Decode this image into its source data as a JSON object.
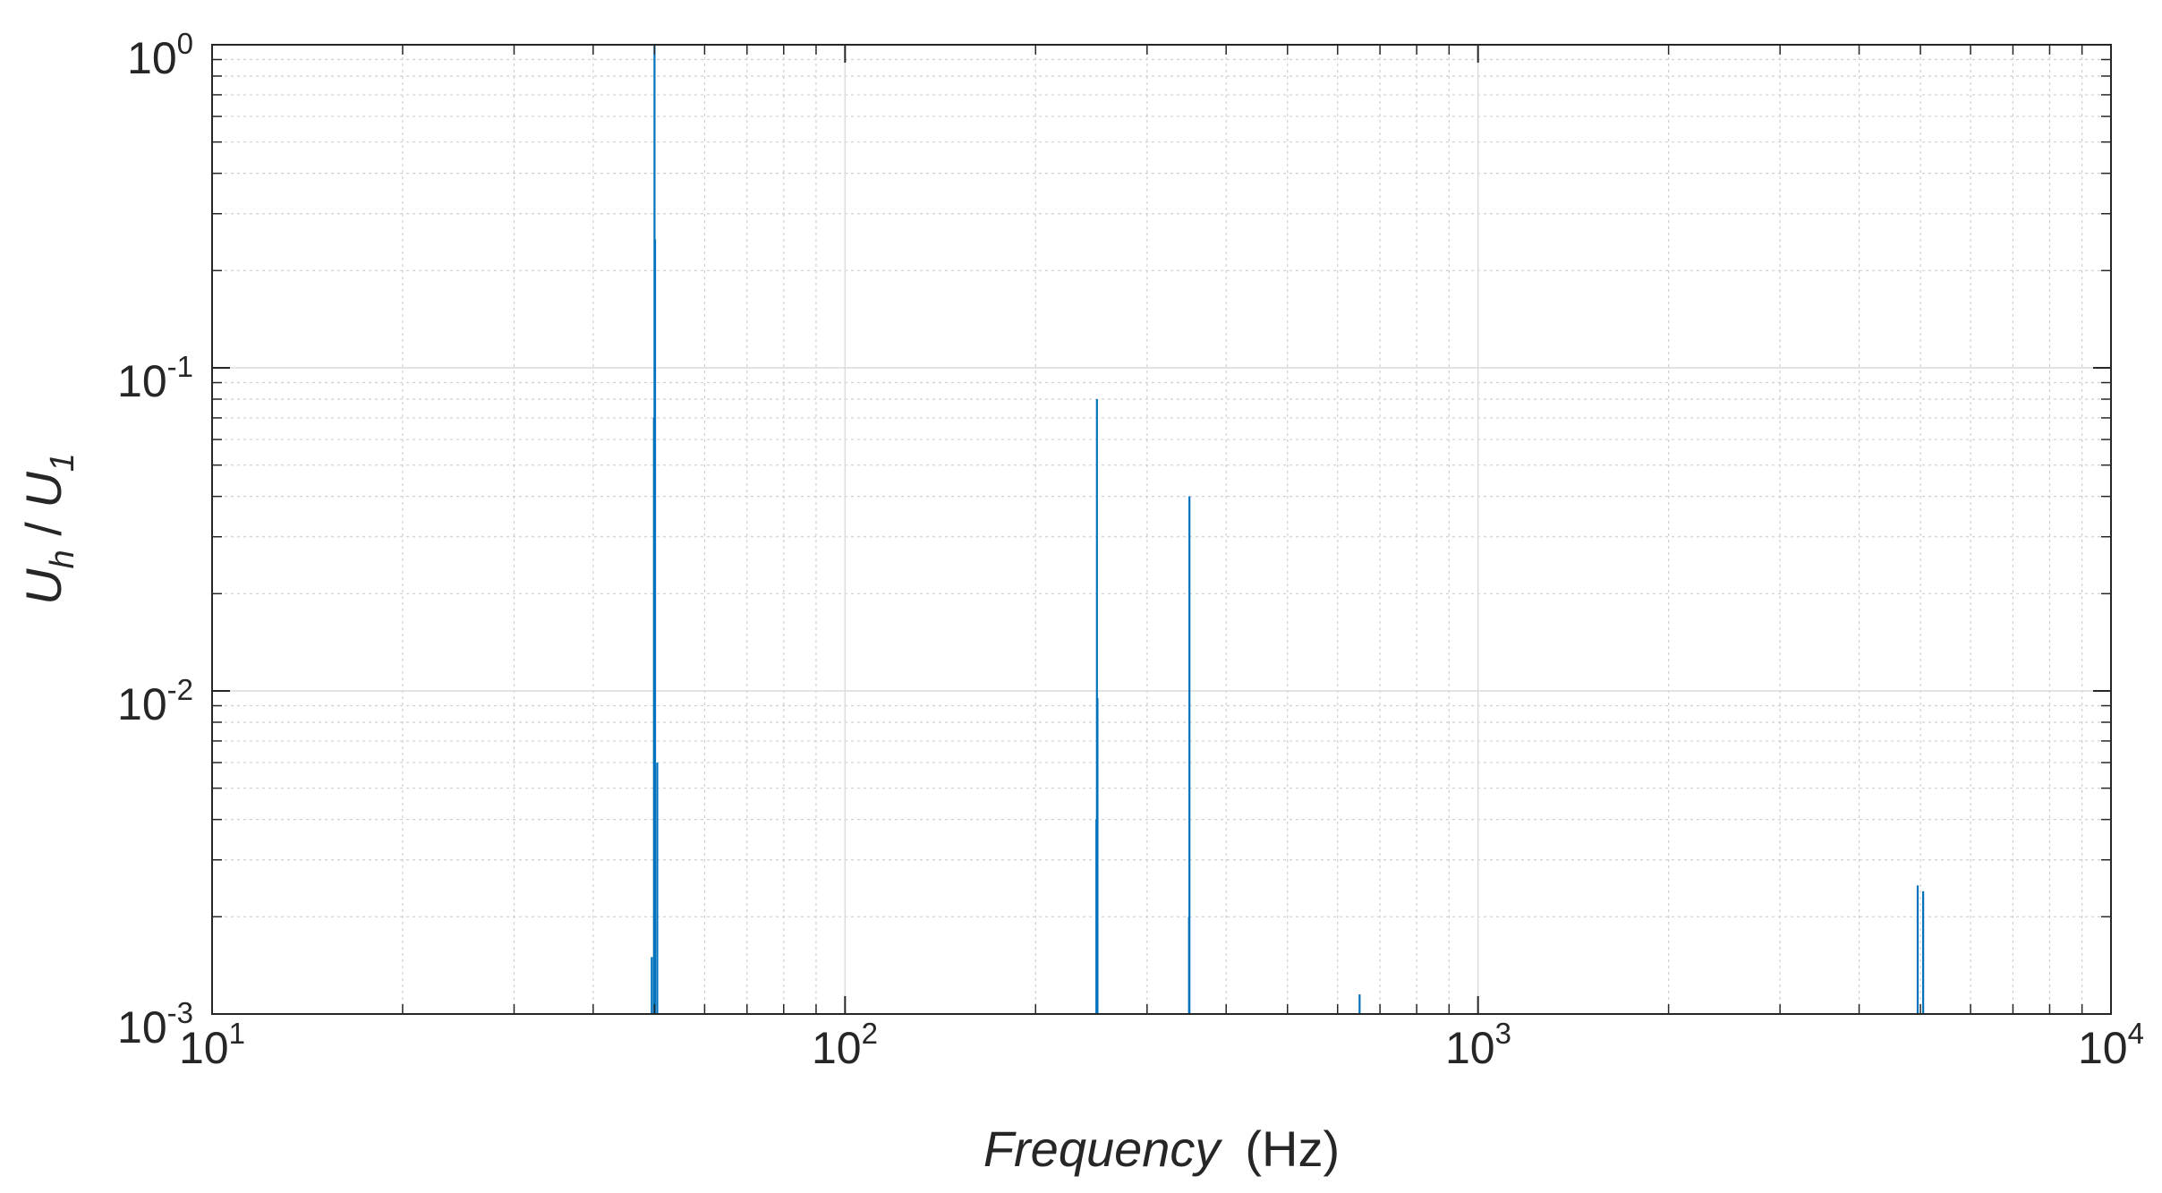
{
  "chart_data": {
    "type": "line",
    "x_scale": "log",
    "y_scale": "log",
    "xlim": [
      10,
      10000
    ],
    "ylim": [
      0.001,
      1
    ],
    "grid": true,
    "minor_grid": true,
    "xlabel": {
      "var": "Frequency",
      "unit": "(Hz)"
    },
    "ylabel": {
      "base1": "U",
      "sub1": "h",
      "sep": " / ",
      "base2": "U",
      "sub2": "1"
    },
    "x_ticks": [
      {
        "base": "10",
        "exp": "1"
      },
      {
        "base": "10",
        "exp": "2"
      },
      {
        "base": "10",
        "exp": "3"
      },
      {
        "base": "10",
        "exp": "4"
      }
    ],
    "y_ticks": [
      {
        "base": "10",
        "exp": "0"
      },
      {
        "base": "10",
        "exp": "-1"
      },
      {
        "base": "10",
        "exp": "-2"
      },
      {
        "base": "10",
        "exp": "-3"
      }
    ],
    "series": [
      {
        "color": "#0072BD",
        "x": [
          49.5,
          49.9,
          50.0,
          50.1,
          50.5,
          249.5,
          250.0,
          250.5,
          349.5,
          350.0,
          650.0,
          4950.0,
          5050.0
        ],
        "y": [
          0.0015,
          0.07,
          1.0,
          0.25,
          0.006,
          0.004,
          0.08,
          0.0095,
          0.002,
          0.04,
          0.00115,
          0.0025,
          0.0024
        ]
      }
    ]
  }
}
